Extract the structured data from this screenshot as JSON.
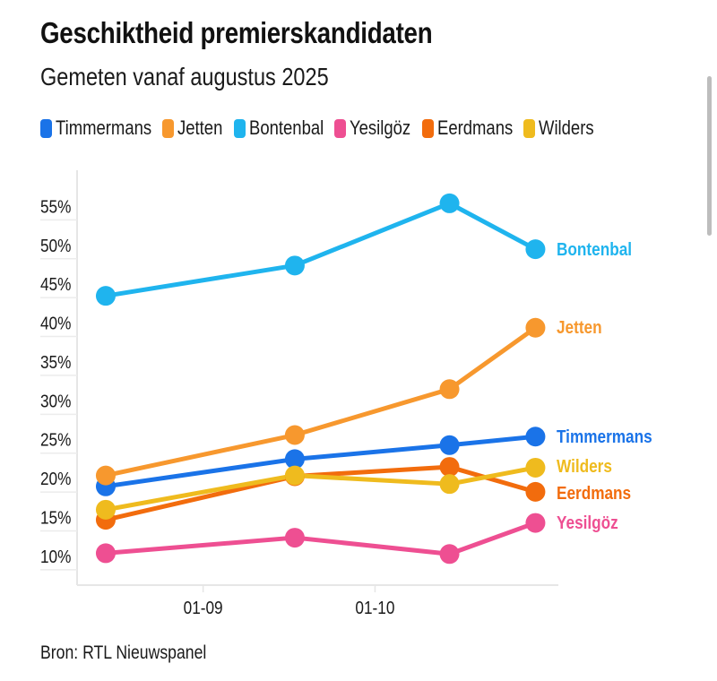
{
  "header": {
    "title": "Geschiktheid premierskandidaten",
    "subtitle": "Gemeten vanaf augustus 2025"
  },
  "footer": {
    "source": "Bron: RTL Nieuwspanel"
  },
  "chart_data": {
    "type": "line",
    "title": "Geschiktheid premierskandidaten",
    "subtitle": "Gemeten vanaf augustus 2025",
    "xlabel": "",
    "ylabel": "",
    "x": [
      "2025-08-15",
      "2025-09-17",
      "2025-10-14",
      "2025-10-29"
    ],
    "x_ticks": [
      {
        "label": "01-09",
        "date": "2025-09-01"
      },
      {
        "label": "01-10",
        "date": "2025-10-01"
      }
    ],
    "x_range": [
      "2025-08-10",
      "2025-11-02"
    ],
    "y_ticks": [
      10,
      15,
      20,
      25,
      30,
      35,
      40,
      45,
      50,
      55
    ],
    "y_tick_labels": [
      "10%",
      "15%",
      "20%",
      "25%",
      "30%",
      "35%",
      "40%",
      "45%",
      "50%",
      "55%"
    ],
    "ylim": [
      6.3,
      58.5
    ],
    "grid": false,
    "legend": "top-left",
    "series": [
      {
        "name": "Timmermans",
        "color": "#1a73e8",
        "values": [
          19,
          22.5,
          24.3,
          25.4
        ]
      },
      {
        "name": "Jetten",
        "color": "#f7982e",
        "values": [
          20.4,
          25.6,
          31.5,
          39.4
        ]
      },
      {
        "name": "Bontenbal",
        "color": "#1fb4ee",
        "values": [
          43.5,
          47.4,
          55.4,
          49.5
        ]
      },
      {
        "name": "Yesilgöz",
        "color": "#ee4f92",
        "values": [
          10.4,
          12.4,
          10.3,
          14.3
        ]
      },
      {
        "name": "Eerdmans",
        "color": "#f26c0d",
        "values": [
          14.7,
          20.3,
          21.5,
          18.3
        ]
      },
      {
        "name": "Wilders",
        "color": "#efbb1e",
        "values": [
          16,
          20.4,
          19.3,
          21.4
        ]
      }
    ],
    "end_labels": [
      "Bontenbal",
      "Jetten",
      "Timmermans",
      "Wilders",
      "Eerdmans",
      "Yesilgöz"
    ]
  },
  "colors": {
    "axis": "#e6e6e6",
    "text": "#1a1a1a",
    "scrollbar": "#bdbdbd"
  }
}
